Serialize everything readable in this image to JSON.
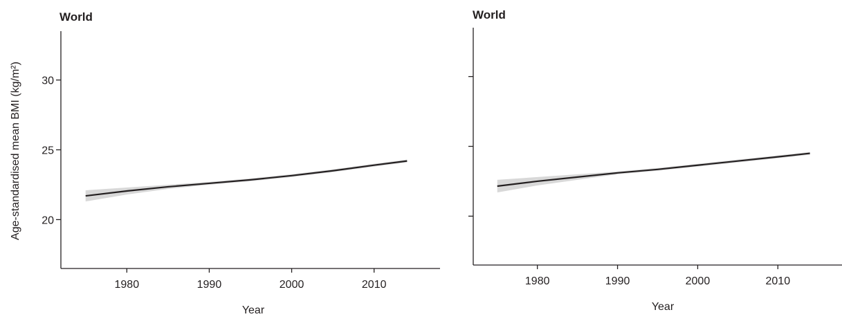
{
  "chart_data": [
    {
      "type": "line",
      "title": "World",
      "xlabel": "Year",
      "ylabel": "Age-standardised mean BMI (kg/m²)",
      "xlim": [
        1972,
        2018
      ],
      "ylim": [
        16.5,
        33.5
      ],
      "xticks": [
        1980,
        1990,
        2000,
        2010
      ],
      "yticks": [
        20,
        25,
        30
      ],
      "show_ytick_labels": true,
      "grid": false,
      "series": [
        {
          "x": [
            1975,
            1980,
            1985,
            1990,
            1995,
            2000,
            2005,
            2010,
            2014
          ],
          "y": [
            21.7,
            22.05,
            22.35,
            22.6,
            22.85,
            23.15,
            23.5,
            23.9,
            24.2
          ],
          "lower": [
            21.3,
            21.8,
            22.2,
            22.5,
            22.75,
            23.05,
            23.4,
            23.8,
            24.1
          ],
          "upper": [
            22.1,
            22.3,
            22.5,
            22.7,
            22.95,
            23.25,
            23.6,
            24.0,
            24.3
          ]
        }
      ]
    },
    {
      "type": "line",
      "title": "World",
      "xlabel": "Year",
      "ylabel": "",
      "xlim": [
        1972,
        2018
      ],
      "ylim": [
        16.5,
        33.5
      ],
      "xticks": [
        1980,
        1990,
        2000,
        2010
      ],
      "yticks": [
        20,
        25,
        30
      ],
      "show_ytick_labels": false,
      "grid": false,
      "series": [
        {
          "x": [
            1975,
            1980,
            1985,
            1990,
            1995,
            2000,
            2005,
            2010,
            2014
          ],
          "y": [
            22.15,
            22.5,
            22.8,
            23.1,
            23.35,
            23.65,
            23.95,
            24.25,
            24.5
          ],
          "lower": [
            21.7,
            22.2,
            22.6,
            23.0,
            23.25,
            23.55,
            23.85,
            24.15,
            24.4
          ],
          "upper": [
            22.6,
            22.8,
            23.0,
            23.2,
            23.45,
            23.75,
            24.05,
            24.35,
            24.6
          ]
        }
      ]
    }
  ]
}
